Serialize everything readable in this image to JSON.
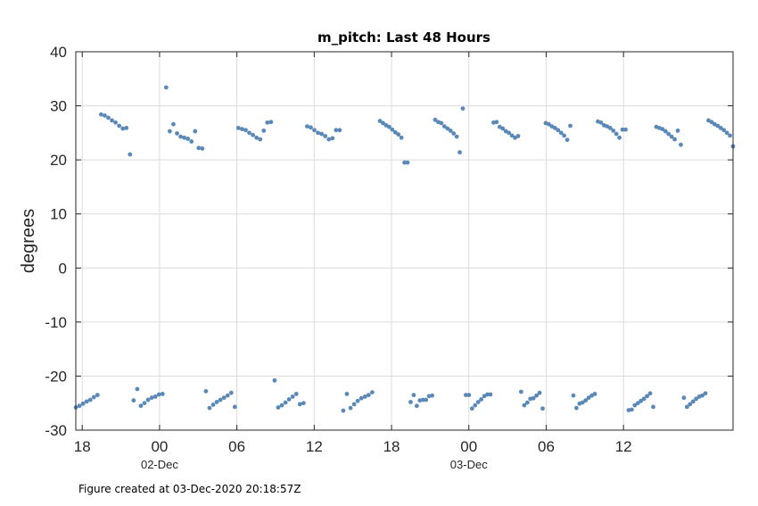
{
  "chart_data": {
    "type": "scatter",
    "title": "m_pitch: Last 48 Hours",
    "xlabel": "",
    "ylabel": "degrees",
    "ylim": [
      -30,
      40
    ],
    "yticks": [
      "40",
      "30",
      "20",
      "10",
      "0",
      "-10",
      "-20",
      "-30"
    ],
    "xlim": [
      "01-Dec-2020 17:30",
      "03-Dec-2020 20:30"
    ],
    "xticks": [
      "18",
      "00",
      "06",
      "12",
      "18",
      "00",
      "06",
      "12"
    ],
    "date_labels": [
      "02-Dec",
      "03-Dec"
    ],
    "grid": true,
    "marker_color": "#5a89b8",
    "series": [
      {
        "values": [
          [
            -25.8,
            -25.5,
            -25.1,
            -24.7,
            -24.4,
            -23.9,
            -23.5,
            28.4,
            28.2,
            27.8,
            27.3,
            26.9,
            26.3,
            25.8,
            25.9,
            21.0,
            -24.5,
            -22.4,
            -25.5,
            -25.0,
            -24.4,
            -24.0,
            -23.8,
            -23.4,
            -23.3,
            33.4,
            25.3,
            26.6,
            24.9,
            24.3,
            24.1,
            23.9,
            23.4,
            25.3,
            22.2,
            22.1,
            -22.8,
            -25.9,
            -25.3,
            -24.8,
            -24.4,
            -24.0,
            -23.6,
            -23.1,
            -25.7,
            25.9,
            25.7,
            25.5,
            25.0,
            24.6,
            24.1,
            23.8,
            25.4,
            26.9,
            27.0,
            -20.8,
            -25.8,
            -25.4,
            -24.9,
            -24.3,
            -23.8,
            -23.3,
            -25.2,
            -25.0,
            26.2,
            26.0,
            25.5,
            25.0,
            24.8,
            24.4,
            23.8,
            24.0,
            25.5,
            25.5,
            -26.4,
            -23.3,
            -25.9,
            -25.2,
            -24.6,
            -24.1,
            -23.8,
            -23.5,
            -23.0
          ],
          [
            27.2,
            26.8,
            26.4,
            26.1,
            25.6,
            25.1,
            24.7,
            24.1,
            19.5,
            19.5,
            -24.8,
            -23.5,
            -25.5,
            -24.5,
            -24.4,
            -24.4,
            -23.7,
            -23.6,
            27.4,
            27.0,
            26.8,
            26.2,
            25.8,
            25.4,
            24.9,
            24.3,
            21.4,
            29.5,
            -23.5,
            -23.5,
            -26.0,
            -25.4,
            -24.8,
            -24.3,
            -23.7,
            -23.4,
            -23.4,
            26.9,
            27.0,
            26.1,
            25.8,
            25.3,
            25.0,
            24.5,
            24.1,
            24.4,
            -22.9,
            -25.4,
            -24.9,
            -24.2,
            -24.1,
            -23.6,
            -23.1,
            -26.0,
            26.8,
            26.6,
            26.2,
            25.9,
            25.5,
            25.0,
            24.5,
            23.7,
            26.3,
            -23.6,
            -25.9,
            -25.1,
            -24.9,
            -24.5,
            -24.0,
            -23.6,
            -23.3,
            27.1,
            26.9,
            26.4,
            26.2,
            25.9,
            25.4,
            24.8,
            24.1,
            25.6,
            25.6,
            -26.3,
            -26.2,
            -25.4,
            -25.0,
            -24.6,
            -24.2,
            -23.7,
            -23.2,
            -25.7,
            26.1,
            25.9,
            25.7,
            25.3,
            24.8,
            24.3,
            23.8,
            25.4,
            22.8,
            -24.0,
            -25.7,
            -25.2,
            -24.7,
            -24.2,
            -23.8,
            -23.6,
            -23.2,
            27.3,
            27.0,
            26.6,
            26.3,
            25.9,
            25.5,
            25.0,
            24.5,
            22.5
          ]
        ]
      }
    ],
    "footer": "Figure created at 03-Dec-2020 20:18:57Z"
  }
}
